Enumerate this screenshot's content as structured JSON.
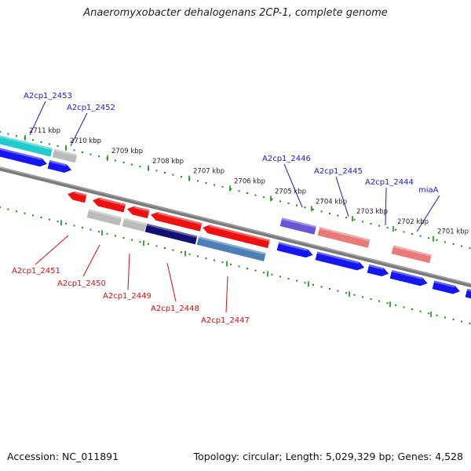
{
  "title": "Anaeromyxobacter dehalogenans 2CP-1, complete genome",
  "footer": {
    "accession": "Accession: NC_011891",
    "summary": "Topology: circular; Length: 5,029,329 bp; Genes: 4,528"
  },
  "colors": {
    "forward_label": "#1a1acc",
    "reverse_label": "#cc1111",
    "backbone": "#7a7a7a",
    "ticks": "#1a8a1a"
  },
  "tick_labels": [
    "2711 kbp",
    "2710 kbp",
    "2709 kbp",
    "2708 kbp",
    "2707 kbp",
    "2706 kbp",
    "2705 kbp",
    "2704 kbp",
    "2703 kbp",
    "2702 kbp",
    "2701 kbp"
  ],
  "forward_labels": [
    "A2cp1_2453",
    "A2cp1_2452",
    "A2cp1_2446",
    "A2cp1_2445",
    "A2cp1_2444",
    "miaA"
  ],
  "reverse_labels": [
    "A2cp1_2451",
    "A2cp1_2450",
    "A2cp1_2449",
    "A2cp1_2448",
    "A2cp1_2447"
  ]
}
